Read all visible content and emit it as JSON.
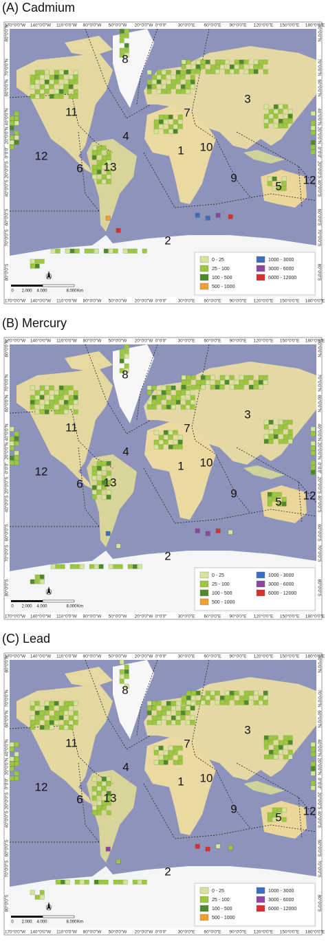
{
  "panels": [
    {
      "title": "(A) Cadmium"
    },
    {
      "title": "(B) Mercury"
    },
    {
      "title": "(C) Lead"
    }
  ],
  "longitude_labels": [
    "170°0'0\"W",
    "140°0'0\"W",
    "110°0'0\"W",
    "80°0'0\"W",
    "50°0'0\"W",
    "20°0'0\"W",
    "0°0'0\"",
    "30°0'0\"E",
    "60°0'0\"E",
    "90°0'0\"E",
    "120°0'0\"E",
    "150°0'0\"E",
    "180°0'0\"E"
  ],
  "latitude_labels": [
    "80°0'0\"N",
    "70°0'0\"N",
    "60°0'0\"N",
    "40°0'0\"N",
    "20°0'0\"N",
    "0°0'0\"",
    "20°0'0\"S",
    "40°0'0\"S",
    "60°0'0\"S",
    "70°0'0\"S",
    "80°0'0\"S"
  ],
  "regions": [
    "8",
    "11",
    "3",
    "7",
    "4",
    "1",
    "10",
    "12",
    "6",
    "13",
    "9",
    "5",
    "12",
    "2"
  ],
  "legend": [
    {
      "label": "0 - 25",
      "color": "#d6e59a"
    },
    {
      "label": "25 - 100",
      "color": "#9cc93c"
    },
    {
      "label": "100 - 500",
      "color": "#4e8a2a"
    },
    {
      "label": "500 - 1000",
      "color": "#f0a030"
    },
    {
      "label": "1000 - 3000",
      "color": "#3a6fc0"
    },
    {
      "label": "3000 - 6000",
      "color": "#8e44a0"
    },
    {
      "label": "6000 - 12000",
      "color": "#d8302c"
    }
  ],
  "scale": {
    "ticks": [
      "0",
      "2.000",
      "4.000",
      "8.000"
    ],
    "unit": "Km"
  }
}
